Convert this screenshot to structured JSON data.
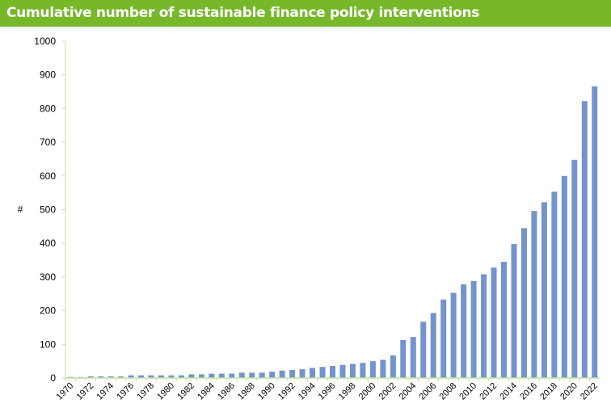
{
  "chart_data": {
    "type": "bar",
    "title": "Cumulative number of sustainable finance policy interventions",
    "xlabel": "",
    "ylabel": "#",
    "ylim": [
      0,
      1000
    ],
    "yticks": [
      0,
      100,
      200,
      300,
      400,
      500,
      600,
      700,
      800,
      900,
      1000
    ],
    "grid": false,
    "bar_color": "#7394cc",
    "axis_color": "#c5e0a5",
    "title_background": "#76b82a",
    "categories": [
      "1970",
      "1971",
      "1972",
      "1973",
      "1974",
      "1975",
      "1976",
      "1977",
      "1978",
      "1979",
      "1980",
      "1981",
      "1982",
      "1983",
      "1984",
      "1985",
      "1986",
      "1987",
      "1988",
      "1989",
      "1990",
      "1991",
      "1992",
      "1993",
      "1994",
      "1995",
      "1996",
      "1997",
      "1998",
      "1999",
      "2000",
      "2001",
      "2002",
      "2003",
      "2004",
      "2005",
      "2006",
      "2007",
      "2008",
      "2009",
      "2010",
      "2011",
      "2012",
      "2013",
      "2014",
      "2015",
      "2016",
      "2017",
      "2018",
      "2019",
      "2020",
      "2021",
      "2022"
    ],
    "values": [
      3,
      3,
      5,
      5,
      5,
      5,
      8,
      8,
      8,
      8,
      8,
      8,
      11,
      11,
      13,
      13,
      13,
      16,
      16,
      16,
      19,
      22,
      24,
      26,
      30,
      33,
      36,
      39,
      42,
      45,
      50,
      54,
      67,
      113,
      122,
      167,
      193,
      233,
      253,
      278,
      288,
      308,
      328,
      345,
      398,
      445,
      496,
      522,
      553,
      600,
      648,
      822,
      866
    ]
  }
}
